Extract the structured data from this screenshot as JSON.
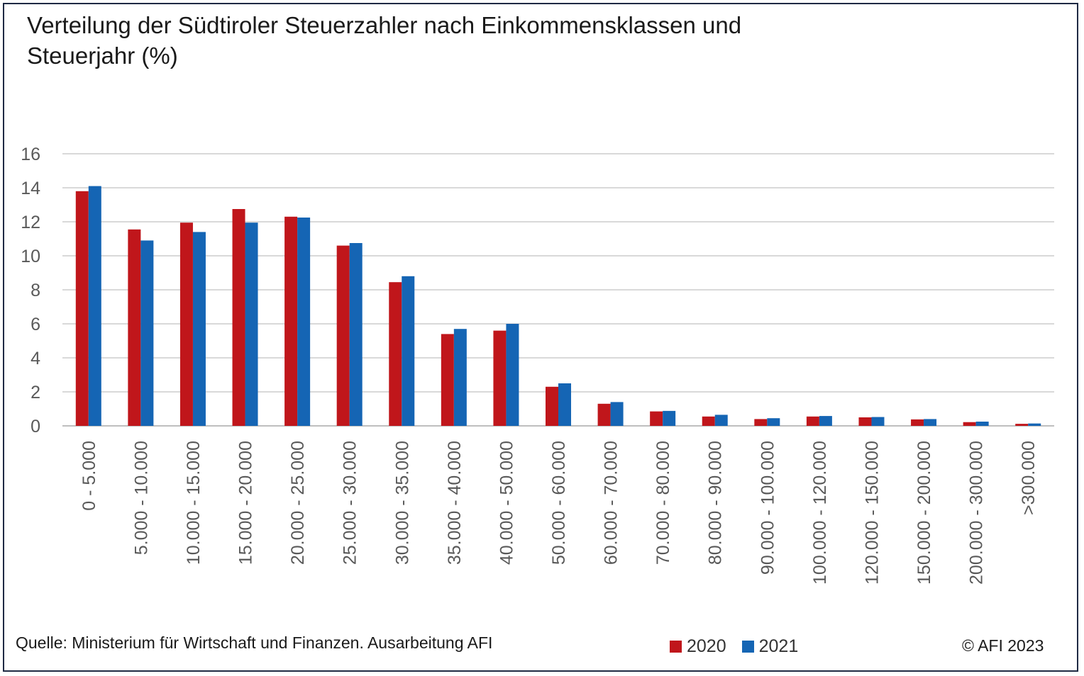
{
  "title_lines": [
    "Verteilung der Südtiroler Steuerzahler nach Einkommensklassen und",
    "Steuerjahr (%)"
  ],
  "source": "Quelle: Ministerium für Wirtschaft und Finanzen. Ausarbeitung AFI",
  "copyright": "© AFI 2023",
  "colors": {
    "2020": "#c0161b",
    "2021": "#1565b4",
    "grid": "#d9d9d9",
    "tick": "#595959"
  },
  "chart_data": {
    "type": "bar",
    "title": "Verteilung der Südtiroler Steuerzahler nach Einkommensklassen und Steuerjahr (%)",
    "xlabel": "",
    "ylabel": "",
    "ylim": [
      0,
      16
    ],
    "yticks": [
      0,
      2,
      4,
      6,
      8,
      10,
      12,
      14,
      16
    ],
    "grid": true,
    "legend": "bottom",
    "categories": [
      "0 - 5.000",
      "5.000 - 10.000",
      "10.000 - 15.000",
      "15.000 - 20.000",
      "20.000 - 25.000",
      "25.000 - 30.000",
      "30.000 - 35.000",
      "35.000 - 40.000",
      "40.000 - 50.000",
      "50.000 - 60.000",
      "60.000 - 70.000",
      "70.000 - 80.000",
      "80.000 - 90.000",
      "90.000 - 100.000",
      "100.000 - 120.000",
      "120.000 - 150.000",
      "150.000 - 200.000",
      "200.000 - 300.000",
      ">300.000"
    ],
    "series": [
      {
        "name": "2020",
        "values": [
          13.8,
          11.55,
          11.95,
          12.75,
          12.3,
          10.6,
          8.45,
          5.4,
          5.6,
          2.3,
          1.3,
          0.85,
          0.55,
          0.4,
          0.55,
          0.5,
          0.38,
          0.22,
          0.12
        ]
      },
      {
        "name": "2021",
        "values": [
          14.1,
          10.9,
          11.4,
          11.95,
          12.25,
          10.75,
          8.8,
          5.7,
          6.0,
          2.5,
          1.4,
          0.88,
          0.65,
          0.45,
          0.58,
          0.52,
          0.4,
          0.25,
          0.14
        ]
      }
    ]
  }
}
